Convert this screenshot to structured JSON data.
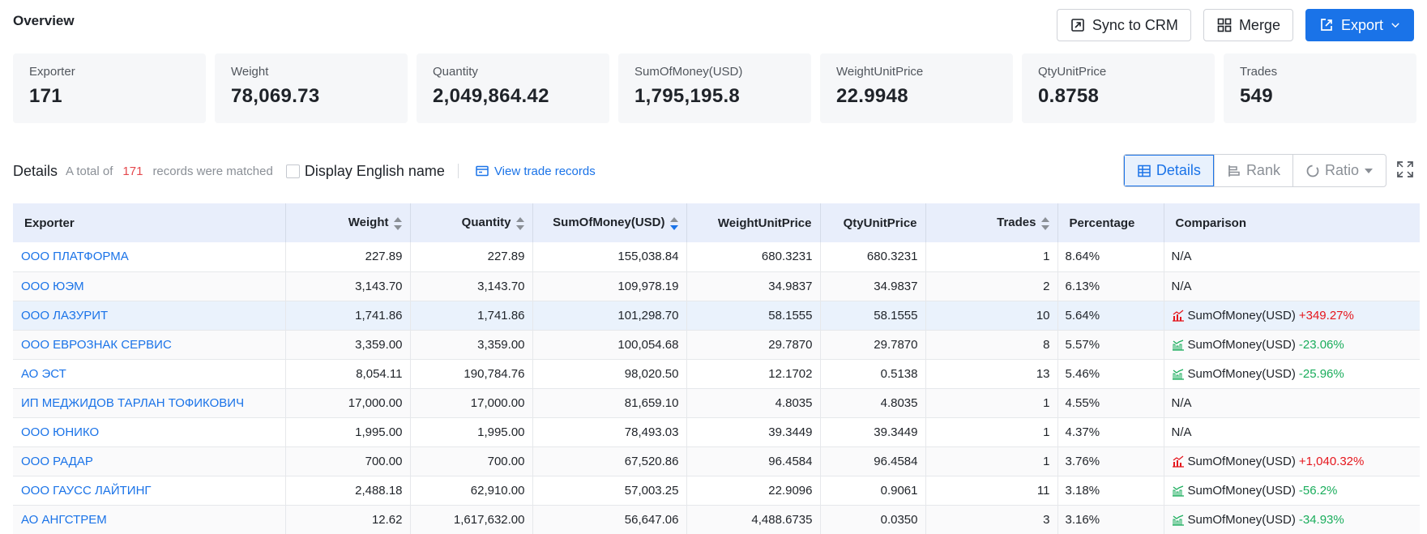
{
  "header": {
    "title": "Overview"
  },
  "actions": {
    "sync_label": "Sync to CRM",
    "merge_label": "Merge",
    "export_label": "Export"
  },
  "stats": [
    {
      "label": "Exporter",
      "value": "171"
    },
    {
      "label": "Weight",
      "value": "78,069.73"
    },
    {
      "label": "Quantity",
      "value": "2,049,864.42"
    },
    {
      "label": "SumOfMoney(USD)",
      "value": "1,795,195.8"
    },
    {
      "label": "WeightUnitPrice",
      "value": "22.9948"
    },
    {
      "label": "QtyUnitPrice",
      "value": "0.8758"
    },
    {
      "label": "Trades",
      "value": "549"
    }
  ],
  "details": {
    "title": "Details",
    "prefix": "A total of",
    "count": "171",
    "suffix": "records were matched",
    "english_name_label": "Display English name",
    "view_records_label": "View trade records"
  },
  "views": {
    "details": "Details",
    "rank": "Rank",
    "ratio": "Ratio"
  },
  "colors": {
    "accent": "#1a73e8",
    "up": "#e5161d",
    "down": "#1aad5c"
  },
  "table": {
    "columns": [
      "Exporter",
      "Weight",
      "Quantity",
      "SumOfMoney(USD)",
      "WeightUnitPrice",
      "QtyUnitPrice",
      "Trades",
      "Percentage",
      "Comparison"
    ],
    "rows": [
      {
        "exporter": "ООО ПЛАТФОРМА",
        "weight": "227.89",
        "quantity": "227.89",
        "sum": "155,038.84",
        "wup": "680.3231",
        "qup": "680.3231",
        "trades": "1",
        "pct": "8.64%",
        "cmp_text": "N/A",
        "cmp_metric": "",
        "cmp_change": "",
        "cmp_dir": "na"
      },
      {
        "exporter": "ООО ЮЭМ",
        "weight": "3,143.70",
        "quantity": "3,143.70",
        "sum": "109,978.19",
        "wup": "34.9837",
        "qup": "34.9837",
        "trades": "2",
        "pct": "6.13%",
        "cmp_text": "N/A",
        "cmp_metric": "",
        "cmp_change": "",
        "cmp_dir": "na"
      },
      {
        "exporter": "ООО ЛАЗУРИТ",
        "weight": "1,741.86",
        "quantity": "1,741.86",
        "sum": "101,298.70",
        "wup": "58.1555",
        "qup": "58.1555",
        "trades": "10",
        "pct": "5.64%",
        "cmp_text": "",
        "cmp_metric": "SumOfMoney(USD)",
        "cmp_change": "+349.27%",
        "cmp_dir": "up"
      },
      {
        "exporter": "ООО ЕВРОЗНАК СЕРВИС",
        "weight": "3,359.00",
        "quantity": "3,359.00",
        "sum": "100,054.68",
        "wup": "29.7870",
        "qup": "29.7870",
        "trades": "8",
        "pct": "5.57%",
        "cmp_text": "",
        "cmp_metric": "SumOfMoney(USD)",
        "cmp_change": "-23.06%",
        "cmp_dir": "down"
      },
      {
        "exporter": "АО ЭСТ",
        "weight": "8,054.11",
        "quantity": "190,784.76",
        "sum": "98,020.50",
        "wup": "12.1702",
        "qup": "0.5138",
        "trades": "13",
        "pct": "5.46%",
        "cmp_text": "",
        "cmp_metric": "SumOfMoney(USD)",
        "cmp_change": "-25.96%",
        "cmp_dir": "down"
      },
      {
        "exporter": "ИП МЕДЖИДОВ ТАРЛАН ТОФИКОВИЧ",
        "weight": "17,000.00",
        "quantity": "17,000.00",
        "sum": "81,659.10",
        "wup": "4.8035",
        "qup": "4.8035",
        "trades": "1",
        "pct": "4.55%",
        "cmp_text": "N/A",
        "cmp_metric": "",
        "cmp_change": "",
        "cmp_dir": "na"
      },
      {
        "exporter": "ООО ЮНИКО",
        "weight": "1,995.00",
        "quantity": "1,995.00",
        "sum": "78,493.03",
        "wup": "39.3449",
        "qup": "39.3449",
        "trades": "1",
        "pct": "4.37%",
        "cmp_text": "N/A",
        "cmp_metric": "",
        "cmp_change": "",
        "cmp_dir": "na"
      },
      {
        "exporter": "ООО РАДАР",
        "weight": "700.00",
        "quantity": "700.00",
        "sum": "67,520.86",
        "wup": "96.4584",
        "qup": "96.4584",
        "trades": "1",
        "pct": "3.76%",
        "cmp_text": "",
        "cmp_metric": "SumOfMoney(USD)",
        "cmp_change": "+1,040.32%",
        "cmp_dir": "up"
      },
      {
        "exporter": "ООО ГАУСС ЛАЙТИНГ",
        "weight": "2,488.18",
        "quantity": "62,910.00",
        "sum": "57,003.25",
        "wup": "22.9096",
        "qup": "0.9061",
        "trades": "11",
        "pct": "3.18%",
        "cmp_text": "",
        "cmp_metric": "SumOfMoney(USD)",
        "cmp_change": "-56.2%",
        "cmp_dir": "down"
      },
      {
        "exporter": "АО АНГСТРЕМ",
        "weight": "12.62",
        "quantity": "1,617,632.00",
        "sum": "56,647.06",
        "wup": "4,488.6735",
        "qup": "0.0350",
        "trades": "3",
        "pct": "3.16%",
        "cmp_text": "",
        "cmp_metric": "SumOfMoney(USD)",
        "cmp_change": "-34.93%",
        "cmp_dir": "down"
      }
    ]
  }
}
